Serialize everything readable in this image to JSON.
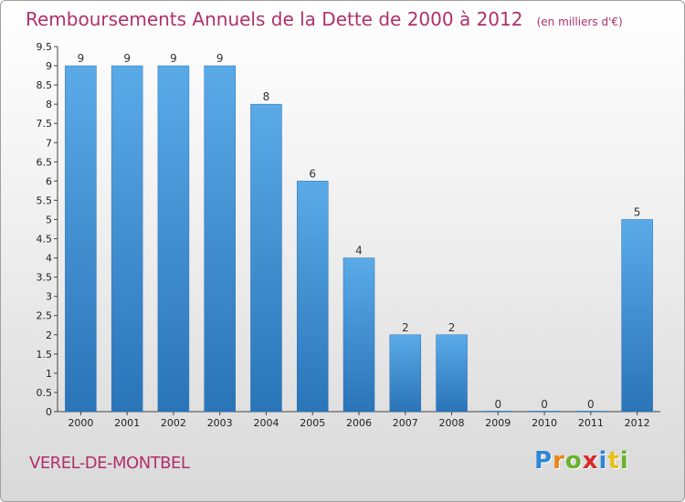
{
  "chart_data": {
    "type": "bar",
    "title": "Remboursements Annuels de la Dette de 2000 à 2012",
    "subtitle": "(en milliers d'€)",
    "categories": [
      "2000",
      "2001",
      "2002",
      "2003",
      "2004",
      "2005",
      "2006",
      "2007",
      "2008",
      "2009",
      "2010",
      "2011",
      "2012"
    ],
    "values": [
      9,
      9,
      9,
      9,
      8,
      6,
      4,
      2,
      2,
      0,
      0,
      0,
      5
    ],
    "value_labels": [
      "9",
      "9",
      "9",
      "9",
      "8",
      "6",
      "4",
      "2",
      "2",
      "0",
      "0",
      "0",
      "5"
    ],
    "yticks": [
      "0",
      "0.5",
      "1",
      "1.5",
      "2",
      "2.5",
      "3",
      "3.5",
      "4",
      "4.5",
      "5",
      "5.5",
      "6",
      "6.5",
      "7",
      "7.5",
      "8",
      "8.5",
      "9",
      "9.5"
    ],
    "ylim": [
      0,
      9.5
    ],
    "grid": false,
    "bar_color": "#3d8fd6"
  },
  "footer": {
    "commune": "VEREL-DE-MONTBEL",
    "brand_letters": [
      {
        "ch": "P",
        "color": "#2e86d6"
      },
      {
        "ch": "r",
        "color": "#e8841a"
      },
      {
        "ch": "o",
        "color": "#6ab22c"
      },
      {
        "ch": "x",
        "color": "#d92b2b"
      },
      {
        "ch": "i",
        "color": "#2e86d6"
      },
      {
        "ch": "t",
        "color": "#e8c11a"
      },
      {
        "ch": "i",
        "color": "#6ab22c"
      }
    ]
  }
}
